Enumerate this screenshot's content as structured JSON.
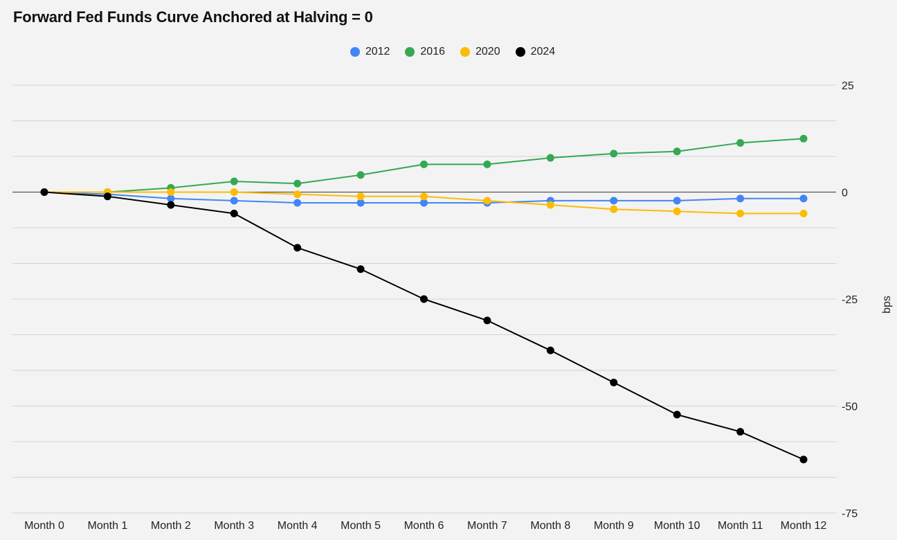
{
  "chart_data": {
    "type": "line",
    "title": "Forward Fed Funds Curve Anchored at Halving = 0",
    "xlabel": "",
    "ylabel": "bps",
    "y_axis_side": "right",
    "ylim": [
      -75,
      25
    ],
    "yticks": [
      25,
      0,
      -25,
      -50,
      -75
    ],
    "ytick_labels": [
      "25",
      "0",
      "-25",
      "-50",
      "-75"
    ],
    "minor_gridlines_per_major": 3,
    "grid": true,
    "legend_position": "top-center",
    "categories": [
      "Month 0",
      "Month 1",
      "Month 2",
      "Month 3",
      "Month 4",
      "Month 5",
      "Month 6",
      "Month 7",
      "Month 8",
      "Month 9",
      "Month 10",
      "Month 11",
      "Month 12"
    ],
    "series": [
      {
        "name": "2012",
        "color": "#4285f4",
        "values": [
          0,
          -0.5,
          -1.5,
          -2,
          -2.5,
          -2.5,
          -2.5,
          -2.5,
          -2,
          -2,
          -2,
          -1.5,
          -1.5
        ]
      },
      {
        "name": "2016",
        "color": "#34a853",
        "values": [
          0,
          0,
          1,
          2.5,
          2,
          4,
          6.5,
          6.5,
          8,
          9,
          9.5,
          11.5,
          12.5
        ]
      },
      {
        "name": "2020",
        "color": "#fbbc04",
        "values": [
          0,
          0,
          0,
          0,
          -0.5,
          -1,
          -1,
          -2,
          -3,
          -4,
          -4.5,
          -5,
          -5
        ]
      },
      {
        "name": "2024",
        "color": "#000000",
        "values": [
          0,
          -1,
          -3,
          -5,
          -13,
          -18,
          -25,
          -30,
          -37,
          -44.5,
          -52,
          -56,
          -62.5
        ]
      }
    ]
  }
}
